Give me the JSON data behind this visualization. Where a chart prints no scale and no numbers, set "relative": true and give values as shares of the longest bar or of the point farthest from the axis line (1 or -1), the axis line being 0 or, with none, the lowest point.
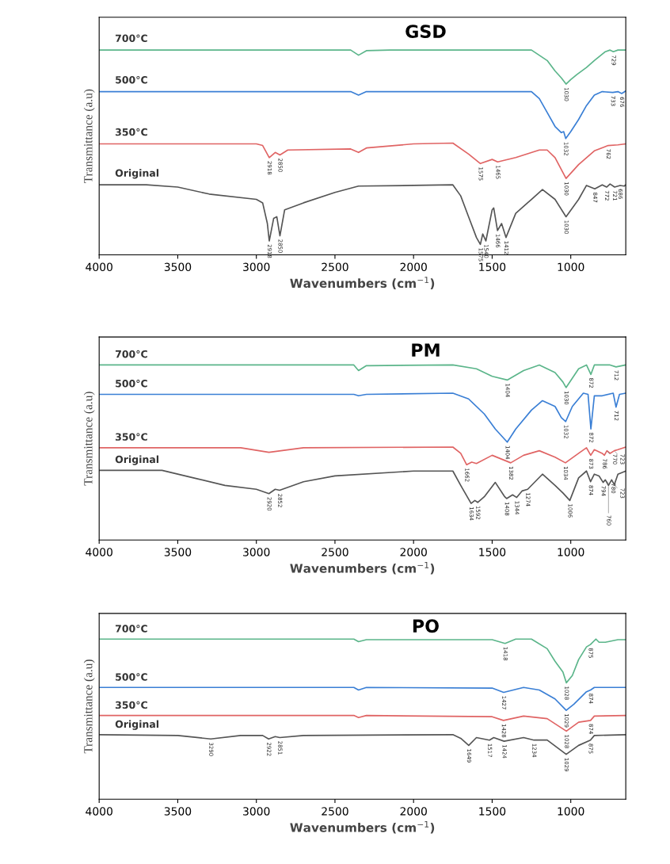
{
  "chart_data": [
    {
      "type": "line",
      "title": "GSD",
      "xlabel": "Wavenumbers (cm$^{−1}$)",
      "ylabel": "Transmittance (a.u)",
      "relative": true,
      "xlim": [
        4000,
        650
      ],
      "xticks": [
        4000,
        3500,
        3000,
        2500,
        2000,
        1500,
        1000
      ],
      "series": [
        {
          "name": "700°C",
          "color": "#5bb58a",
          "x": [
            4000,
            2400,
            2350,
            2300,
            2150,
            1800,
            1250,
            1150,
            1100,
            1060,
            1030,
            1000,
            960,
            900,
            850,
            780,
            750,
            729,
            700,
            650
          ],
          "values": [
            1.0,
            1.0,
            0.975,
            0.997,
            1.0,
            1.0,
            1.0,
            0.949,
            0.898,
            0.864,
            0.834,
            0.856,
            0.881,
            0.915,
            0.949,
            0.992,
            1.0,
            0.992,
            1.0,
            1.0
          ]
        },
        {
          "name": "500°C",
          "color": "#3a7fd5",
          "x": [
            4000,
            2400,
            2350,
            2300,
            1250,
            1200,
            1150,
            1100,
            1060,
            1045,
            1032,
            1000,
            950,
            900,
            850,
            800,
            733,
            700,
            676,
            650
          ],
          "values": [
            0.797,
            0.797,
            0.78,
            0.797,
            0.797,
            0.763,
            0.695,
            0.627,
            0.597,
            0.602,
            0.568,
            0.602,
            0.661,
            0.729,
            0.78,
            0.797,
            0.793,
            0.797,
            0.788,
            0.8
          ]
        },
        {
          "name": "350°C",
          "color": "#e06464",
          "x": [
            4000,
            3000,
            2960,
            2918,
            2880,
            2850,
            2800,
            2400,
            2350,
            2300,
            2000,
            1750,
            1650,
            1575,
            1500,
            1465,
            1350,
            1200,
            1150,
            1100,
            1030,
            950,
            850,
            762,
            700,
            650
          ],
          "values": [
            0.542,
            0.542,
            0.534,
            0.475,
            0.5,
            0.488,
            0.512,
            0.517,
            0.5,
            0.522,
            0.542,
            0.546,
            0.492,
            0.446,
            0.466,
            0.454,
            0.475,
            0.512,
            0.512,
            0.475,
            0.373,
            0.441,
            0.508,
            0.534,
            0.537,
            0.542
          ]
        },
        {
          "name": "Original",
          "color": "#555555",
          "x": [
            4000,
            3700,
            3500,
            3300,
            3000,
            2960,
            2930,
            2918,
            2890,
            2870,
            2850,
            2820,
            2700,
            2500,
            2350,
            2000,
            1750,
            1700,
            1650,
            1600,
            1575,
            1560,
            1540,
            1500,
            1490,
            1466,
            1440,
            1412,
            1350,
            1250,
            1180,
            1100,
            1030,
            950,
            900,
            847,
            800,
            772,
            750,
            721,
            686,
            660,
            650
          ],
          "values": [
            0.342,
            0.342,
            0.331,
            0.297,
            0.271,
            0.254,
            0.153,
            0.068,
            0.178,
            0.186,
            0.093,
            0.22,
            0.254,
            0.305,
            0.336,
            0.339,
            0.342,
            0.288,
            0.186,
            0.085,
            0.051,
            0.102,
            0.068,
            0.22,
            0.229,
            0.119,
            0.153,
            0.085,
            0.203,
            0.271,
            0.319,
            0.271,
            0.186,
            0.271,
            0.339,
            0.322,
            0.342,
            0.331,
            0.346,
            0.331,
            0.339,
            0.336,
            0.342
          ]
        }
      ],
      "annotations": [
        {
          "text": "1030",
          "x": 1030,
          "y": 0.834
        },
        {
          "text": "729",
          "x": 729,
          "y": 0.992
        },
        {
          "text": "1032",
          "x": 1032,
          "y": 0.568
        },
        {
          "text": "733",
          "x": 733,
          "y": 0.793
        },
        {
          "text": "676",
          "x": 676,
          "y": 0.788
        },
        {
          "text": "2918",
          "x": 2918,
          "y": 0.475
        },
        {
          "text": "2850",
          "x": 2850,
          "y": 0.488
        },
        {
          "text": "1575",
          "x": 1575,
          "y": 0.446
        },
        {
          "text": "1465",
          "x": 1465,
          "y": 0.454
        },
        {
          "text": "1030",
          "x": 1030,
          "y": 0.373
        },
        {
          "text": "762",
          "x": 762,
          "y": 0.534
        },
        {
          "text": "2918",
          "x": 2918,
          "y": 0.068
        },
        {
          "text": "2850",
          "x": 2850,
          "y": 0.093
        },
        {
          "text": "1575",
          "x": 1575,
          "y": 0.051
        },
        {
          "text": "1540",
          "x": 1540,
          "y": 0.068
        },
        {
          "text": "1466",
          "x": 1466,
          "y": 0.119
        },
        {
          "text": "1412",
          "x": 1412,
          "y": 0.085
        },
        {
          "text": "1030",
          "x": 1030,
          "y": 0.186
        },
        {
          "text": "847",
          "x": 847,
          "y": 0.322
        },
        {
          "text": "772",
          "x": 772,
          "y": 0.331
        },
        {
          "text": "721",
          "x": 721,
          "y": 0.331
        },
        {
          "text": "686",
          "x": 686,
          "y": 0.339
        }
      ]
    },
    {
      "type": "line",
      "title": "PM",
      "xlabel": "Wavenumbers (cm$^{−1}$)",
      "ylabel": "Transmittance (a.u)",
      "relative": true,
      "xlim": [
        4000,
        650
      ],
      "xticks": [
        4000,
        3500,
        3000,
        2500,
        2000,
        1500,
        1000
      ],
      "series": [
        {
          "name": "700°C",
          "color": "#5bb58a",
          "x": [
            4000,
            2380,
            2350,
            2300,
            1750,
            1600,
            1500,
            1404,
            1300,
            1200,
            1100,
            1050,
            1030,
            950,
            900,
            872,
            850,
            750,
            712,
            650
          ],
          "values": [
            1.0,
            1.0,
            0.968,
            0.996,
            1.0,
            0.978,
            0.935,
            0.914,
            0.968,
            1.0,
            0.957,
            0.903,
            0.871,
            0.978,
            1.0,
            0.946,
            1.0,
            1.0,
            0.989,
            1.0
          ]
        },
        {
          "name": "500°C",
          "color": "#3a7fd5",
          "x": [
            4000,
            2380,
            2350,
            2300,
            1750,
            1650,
            1550,
            1480,
            1404,
            1350,
            1250,
            1180,
            1100,
            1060,
            1032,
            990,
            920,
            890,
            872,
            850,
            800,
            730,
            712,
            690,
            650
          ],
          "values": [
            0.832,
            0.832,
            0.824,
            0.832,
            0.839,
            0.806,
            0.72,
            0.634,
            0.559,
            0.634,
            0.742,
            0.796,
            0.763,
            0.699,
            0.677,
            0.763,
            0.839,
            0.832,
            0.634,
            0.824,
            0.824,
            0.839,
            0.759,
            0.832,
            0.839
          ]
        },
        {
          "name": "350°C",
          "color": "#e06464",
          "x": [
            4000,
            3100,
            2920,
            2700,
            1750,
            1700,
            1662,
            1630,
            1600,
            1500,
            1382,
            1300,
            1200,
            1100,
            1034,
            950,
            900,
            873,
            850,
            800,
            786,
            770,
            750,
            723,
            700,
            650
          ],
          "values": [
            0.527,
            0.527,
            0.501,
            0.527,
            0.531,
            0.495,
            0.43,
            0.445,
            0.437,
            0.484,
            0.441,
            0.484,
            0.51,
            0.473,
            0.441,
            0.495,
            0.527,
            0.484,
            0.516,
            0.495,
            0.484,
            0.51,
            0.495,
            0.51,
            0.516,
            0.531
          ]
        },
        {
          "name": "Original",
          "color": "#555555",
          "x": [
            4000,
            3600,
            3400,
            3200,
            3000,
            2920,
            2880,
            2852,
            2700,
            2500,
            2000,
            1750,
            1700,
            1634,
            1610,
            1592,
            1550,
            1480,
            1420,
            1408,
            1370,
            1344,
            1310,
            1274,
            1180,
            1100,
            1050,
            1006,
            950,
            900,
            874,
            850,
            820,
            794,
            780,
            760,
            740,
            723,
            700,
            650
          ],
          "values": [
            0.398,
            0.398,
            0.355,
            0.312,
            0.29,
            0.265,
            0.29,
            0.284,
            0.333,
            0.366,
            0.394,
            0.394,
            0.312,
            0.209,
            0.226,
            0.215,
            0.247,
            0.329,
            0.247,
            0.237,
            0.258,
            0.243,
            0.28,
            0.29,
            0.376,
            0.312,
            0.269,
            0.226,
            0.355,
            0.394,
            0.333,
            0.376,
            0.366,
            0.329,
            0.344,
            0.312,
            0.344,
            0.316,
            0.376,
            0.394
          ]
        }
      ],
      "annotations": [
        {
          "text": "1404",
          "x": 1404,
          "y": 0.914
        },
        {
          "text": "1030",
          "x": 1030,
          "y": 0.871
        },
        {
          "text": "872",
          "x": 872,
          "y": 0.946
        },
        {
          "text": "712",
          "x": 712,
          "y": 0.989
        },
        {
          "text": "1404",
          "x": 1404,
          "y": 0.559
        },
        {
          "text": "1032",
          "x": 1032,
          "y": 0.677
        },
        {
          "text": "872",
          "x": 872,
          "y": 0.634
        },
        {
          "text": "712",
          "x": 712,
          "y": 0.759
        },
        {
          "text": "1662",
          "x": 1662,
          "y": 0.43
        },
        {
          "text": "1382",
          "x": 1382,
          "y": 0.441
        },
        {
          "text": "1034",
          "x": 1034,
          "y": 0.441
        },
        {
          "text": "873",
          "x": 873,
          "y": 0.484
        },
        {
          "text": "786",
          "x": 786,
          "y": 0.484
        },
        {
          "text": "770",
          "x": 770,
          "y": 0.51
        },
        {
          "text": "723",
          "x": 723,
          "y": 0.51
        },
        {
          "text": "2920",
          "x": 2920,
          "y": 0.265
        },
        {
          "text": "2852",
          "x": 2852,
          "y": 0.284
        },
        {
          "text": "1634",
          "x": 1634,
          "y": 0.209
        },
        {
          "text": "1592",
          "x": 1592,
          "y": 0.215
        },
        {
          "text": "1408",
          "x": 1408,
          "y": 0.237
        },
        {
          "text": "1344",
          "x": 1344,
          "y": 0.243
        },
        {
          "text": "1274",
          "x": 1274,
          "y": 0.29
        },
        {
          "text": "1006",
          "x": 1006,
          "y": 0.226
        },
        {
          "text": "874",
          "x": 874,
          "y": 0.333
        },
        {
          "text": "794",
          "x": 794,
          "y": 0.329
        },
        {
          "text": "780",
          "x": 780,
          "y": 0.344
        },
        {
          "text": "760",
          "x": 760,
          "y": 0.312
        },
        {
          "text": "723",
          "x": 723,
          "y": 0.316
        }
      ]
    },
    {
      "type": "line",
      "title": "PO",
      "xlabel": "Wavenumbers (cm$^{−1}$)",
      "ylabel": "Transmittance (a.u)",
      "relative": true,
      "xlim": [
        4000,
        650
      ],
      "xticks": [
        4000,
        3500,
        3000,
        2500,
        2000,
        1500,
        1000
      ],
      "series": [
        {
          "name": "700°C",
          "color": "#5bb58a",
          "x": [
            4000,
            2380,
            2350,
            2300,
            1500,
            1418,
            1350,
            1250,
            1150,
            1100,
            1050,
            1028,
            990,
            950,
            900,
            875,
            840,
            820,
            780,
            700,
            650
          ],
          "values": [
            1.0,
            1.0,
            0.984,
            0.996,
            0.996,
            0.973,
            1.0,
            1.0,
            0.94,
            0.861,
            0.794,
            0.727,
            0.772,
            0.872,
            0.951,
            0.966,
            1.0,
            0.98,
            0.98,
            0.996,
            0.996
          ]
        },
        {
          "name": "500°C",
          "color": "#3a7fd5",
          "x": [
            4000,
            2380,
            2350,
            2300,
            1500,
            1427,
            1300,
            1200,
            1100,
            1029,
            980,
            900,
            874,
            850,
            650
          ],
          "values": [
            0.698,
            0.698,
            0.682,
            0.698,
            0.694,
            0.667,
            0.698,
            0.682,
            0.626,
            0.555,
            0.593,
            0.671,
            0.682,
            0.698,
            0.698
          ]
        },
        {
          "name": "350°C",
          "color": "#e06464",
          "x": [
            4000,
            2380,
            2350,
            2300,
            1500,
            1428,
            1300,
            1150,
            1028,
            950,
            874,
            850,
            650
          ],
          "values": [
            0.523,
            0.523,
            0.51,
            0.523,
            0.515,
            0.492,
            0.519,
            0.503,
            0.425,
            0.481,
            0.492,
            0.519,
            0.523
          ]
        },
        {
          "name": "Original",
          "color": "#555555",
          "x": [
            4000,
            3500,
            3290,
            3100,
            2960,
            2922,
            2880,
            2851,
            2700,
            1750,
            1700,
            1649,
            1600,
            1517,
            1490,
            1424,
            1300,
            1234,
            1150,
            1029,
            950,
            875,
            850,
            650
          ],
          "values": [
            0.403,
            0.398,
            0.376,
            0.398,
            0.398,
            0.376,
            0.391,
            0.385,
            0.398,
            0.403,
            0.38,
            0.336,
            0.385,
            0.369,
            0.385,
            0.362,
            0.385,
            0.369,
            0.369,
            0.28,
            0.336,
            0.369,
            0.398,
            0.403
          ]
        }
      ],
      "annotations": [
        {
          "text": "1418",
          "x": 1418,
          "y": 0.973
        },
        {
          "text": "1028",
          "x": 1028,
          "y": 0.727
        },
        {
          "text": "875",
          "x": 875,
          "y": 0.966
        },
        {
          "text": "1427",
          "x": 1427,
          "y": 0.667
        },
        {
          "text": "1029",
          "x": 1029,
          "y": 0.555
        },
        {
          "text": "874",
          "x": 874,
          "y": 0.682
        },
        {
          "text": "1428",
          "x": 1428,
          "y": 0.492
        },
        {
          "text": "1028",
          "x": 1028,
          "y": 0.425
        },
        {
          "text": "874",
          "x": 874,
          "y": 0.492
        },
        {
          "text": "3290",
          "x": 3290,
          "y": 0.376
        },
        {
          "text": "2922",
          "x": 2922,
          "y": 0.376
        },
        {
          "text": "2851",
          "x": 2851,
          "y": 0.385
        },
        {
          "text": "1649",
          "x": 1649,
          "y": 0.336
        },
        {
          "text": "1517",
          "x": 1517,
          "y": 0.369
        },
        {
          "text": "1424",
          "x": 1424,
          "y": 0.362
        },
        {
          "text": "1234",
          "x": 1234,
          "y": 0.369
        },
        {
          "text": "1029",
          "x": 1029,
          "y": 0.28
        },
        {
          "text": "875",
          "x": 875,
          "y": 0.369
        }
      ]
    }
  ]
}
